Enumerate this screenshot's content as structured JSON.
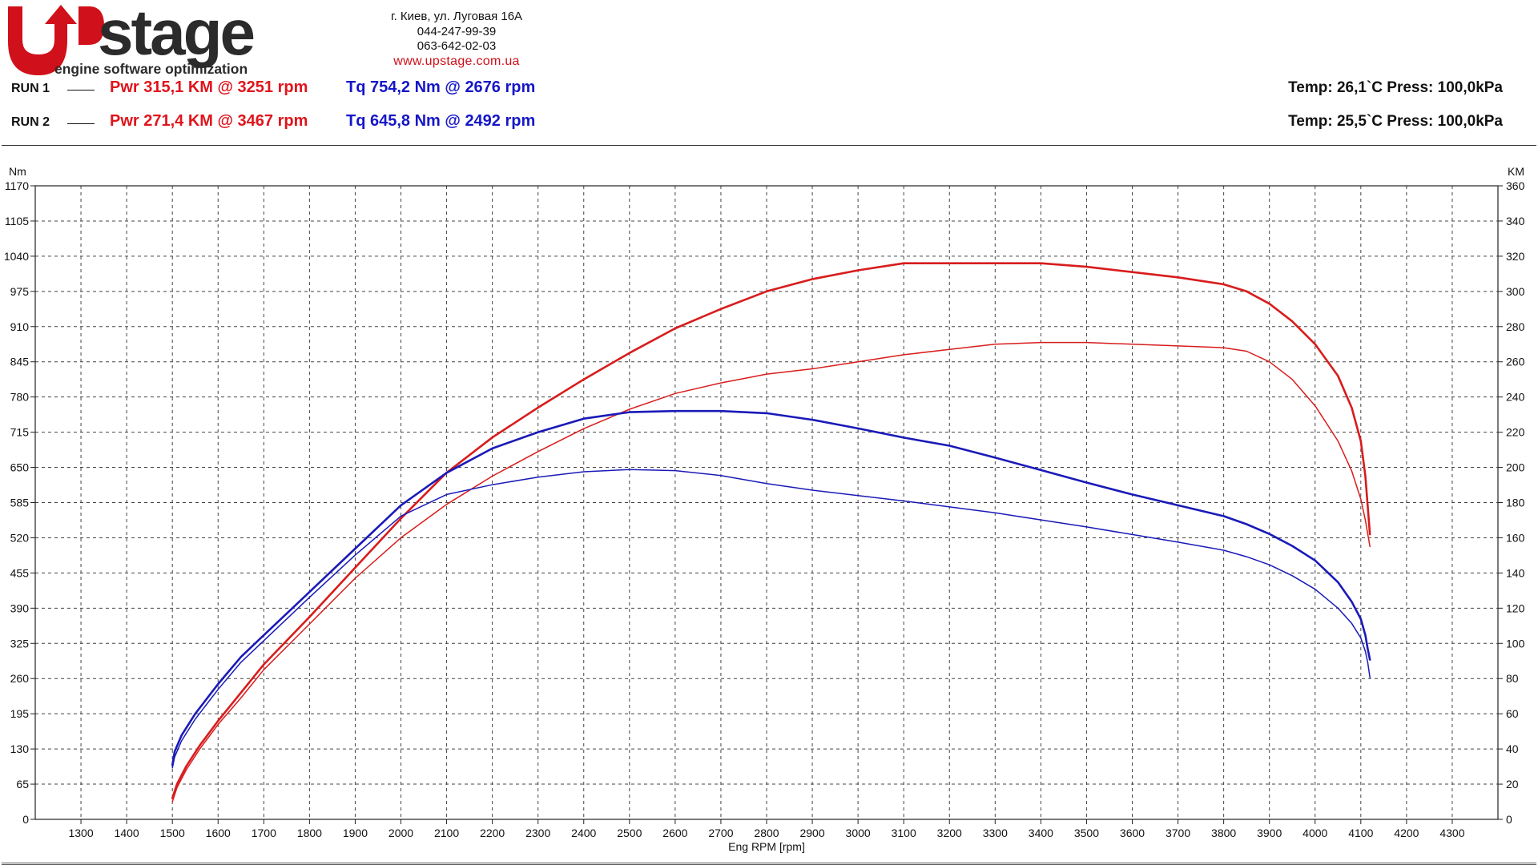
{
  "brand": {
    "name_first": "U",
    "name_rest": "stage",
    "tagline": "engine software optimization",
    "colors": {
      "red": "#d0101a",
      "dark": "#2b2b2b"
    }
  },
  "contact": {
    "address": "г. Киев, ул. Луговая 16А",
    "phone1": "044-247-99-39",
    "phone2": "063-642-02-03",
    "website": "www.upstage.com.ua"
  },
  "runs": [
    {
      "label": "RUN 1",
      "pwr": "Pwr  315,1 KM @ 3251 rpm",
      "tq": "Tq 754,2 Nm @ 2676 rpm",
      "env": "Temp: 26,1`C    Press: 100,0kPa"
    },
    {
      "label": "RUN 2",
      "pwr": "Pwr  271,4 KM @ 3467 rpm",
      "tq": "Tq 645,8 Nm @ 2492 rpm",
      "env": "Temp: 25,5`C    Press: 100,0kPa"
    }
  ],
  "chart_data": {
    "type": "line",
    "xlabel": "Eng RPM [rpm]",
    "ylabel_left": "Nm",
    "ylabel_right": "KM",
    "xlim": [
      1200,
      4400
    ],
    "ylim_left": [
      0,
      1170
    ],
    "ylim_right": [
      0,
      360
    ],
    "xticks": [
      1300,
      1400,
      1500,
      1600,
      1700,
      1800,
      1900,
      2000,
      2100,
      2200,
      2300,
      2400,
      2500,
      2600,
      2700,
      2800,
      2900,
      3000,
      3100,
      3200,
      3300,
      3400,
      3500,
      3600,
      3700,
      3800,
      3900,
      4000,
      4100,
      4200,
      4300
    ],
    "yticks_left": [
      0,
      65,
      130,
      195,
      260,
      325,
      390,
      455,
      520,
      585,
      650,
      715,
      780,
      845,
      910,
      975,
      1040,
      1105,
      1170
    ],
    "yticks_right": [
      0,
      20,
      40,
      60,
      80,
      100,
      120,
      140,
      160,
      180,
      200,
      220,
      240,
      260,
      280,
      300,
      320,
      340,
      360
    ],
    "grid": true,
    "colors": {
      "power": "#d81c1c",
      "torque": "#1a1ab8"
    },
    "series": [
      {
        "run": 1,
        "kind": "power",
        "axis": "right",
        "x": [
          1500,
          1510,
          1530,
          1560,
          1600,
          1650,
          1700,
          1800,
          1900,
          2000,
          2100,
          2200,
          2300,
          2400,
          2500,
          2600,
          2700,
          2800,
          2900,
          3000,
          3100,
          3200,
          3300,
          3400,
          3500,
          3600,
          3700,
          3800,
          3850,
          3900,
          3950,
          4000,
          4050,
          4080,
          4100,
          4110,
          4115,
          4120
        ],
        "y": [
          12,
          20,
          30,
          42,
          56,
          72,
          88,
          115,
          143,
          171,
          197,
          217,
          234,
          250,
          265,
          279,
          290,
          300,
          307,
          312,
          316,
          316,
          316,
          316,
          314,
          311,
          308,
          304,
          300,
          293,
          283,
          270,
          252,
          234,
          215,
          195,
          178,
          162
        ]
      },
      {
        "run": 2,
        "kind": "power",
        "axis": "right",
        "x": [
          1500,
          1510,
          1530,
          1560,
          1600,
          1650,
          1700,
          1800,
          1900,
          2000,
          2100,
          2200,
          2300,
          2400,
          2500,
          2600,
          2700,
          2800,
          2900,
          3000,
          3100,
          3200,
          3300,
          3400,
          3500,
          3600,
          3700,
          3800,
          3850,
          3900,
          3950,
          4000,
          4050,
          4080,
          4100,
          4110,
          4120
        ],
        "y": [
          10,
          18,
          28,
          40,
          54,
          69,
          85,
          111,
          137,
          160,
          179,
          195,
          209,
          222,
          233,
          242,
          248,
          253,
          256,
          260,
          264,
          267,
          270,
          271,
          271,
          270,
          269,
          268,
          266,
          260,
          250,
          235,
          215,
          198,
          182,
          170,
          155
        ]
      },
      {
        "run": 1,
        "kind": "torque",
        "axis": "left",
        "x": [
          1500,
          1505,
          1520,
          1550,
          1600,
          1650,
          1700,
          1800,
          1900,
          2000,
          2100,
          2200,
          2300,
          2400,
          2500,
          2600,
          2700,
          2800,
          2900,
          3000,
          3100,
          3200,
          3300,
          3400,
          3500,
          3600,
          3700,
          3800,
          3850,
          3900,
          3950,
          4000,
          4050,
          4080,
          4100,
          4110,
          4115,
          4120
        ],
        "y": [
          100,
          125,
          155,
          195,
          250,
          300,
          340,
          420,
          500,
          580,
          640,
          685,
          715,
          740,
          752,
          754,
          754,
          750,
          738,
          722,
          705,
          690,
          668,
          645,
          622,
          600,
          580,
          560,
          545,
          527,
          505,
          478,
          438,
          402,
          370,
          340,
          315,
          295
        ]
      },
      {
        "run": 2,
        "kind": "torque",
        "axis": "left",
        "x": [
          1500,
          1505,
          1520,
          1550,
          1600,
          1650,
          1700,
          1800,
          1900,
          2000,
          2100,
          2200,
          2300,
          2400,
          2500,
          2600,
          2700,
          2800,
          2900,
          3000,
          3100,
          3200,
          3300,
          3400,
          3500,
          3600,
          3700,
          3800,
          3850,
          3900,
          3950,
          4000,
          4050,
          4080,
          4100,
          4110,
          4115,
          4120
        ],
        "y": [
          95,
          115,
          145,
          185,
          240,
          290,
          330,
          410,
          488,
          560,
          600,
          618,
          632,
          642,
          646,
          644,
          635,
          620,
          608,
          598,
          588,
          577,
          566,
          553,
          540,
          526,
          512,
          497,
          485,
          470,
          450,
          425,
          390,
          362,
          335,
          310,
          290,
          262
        ]
      }
    ]
  }
}
